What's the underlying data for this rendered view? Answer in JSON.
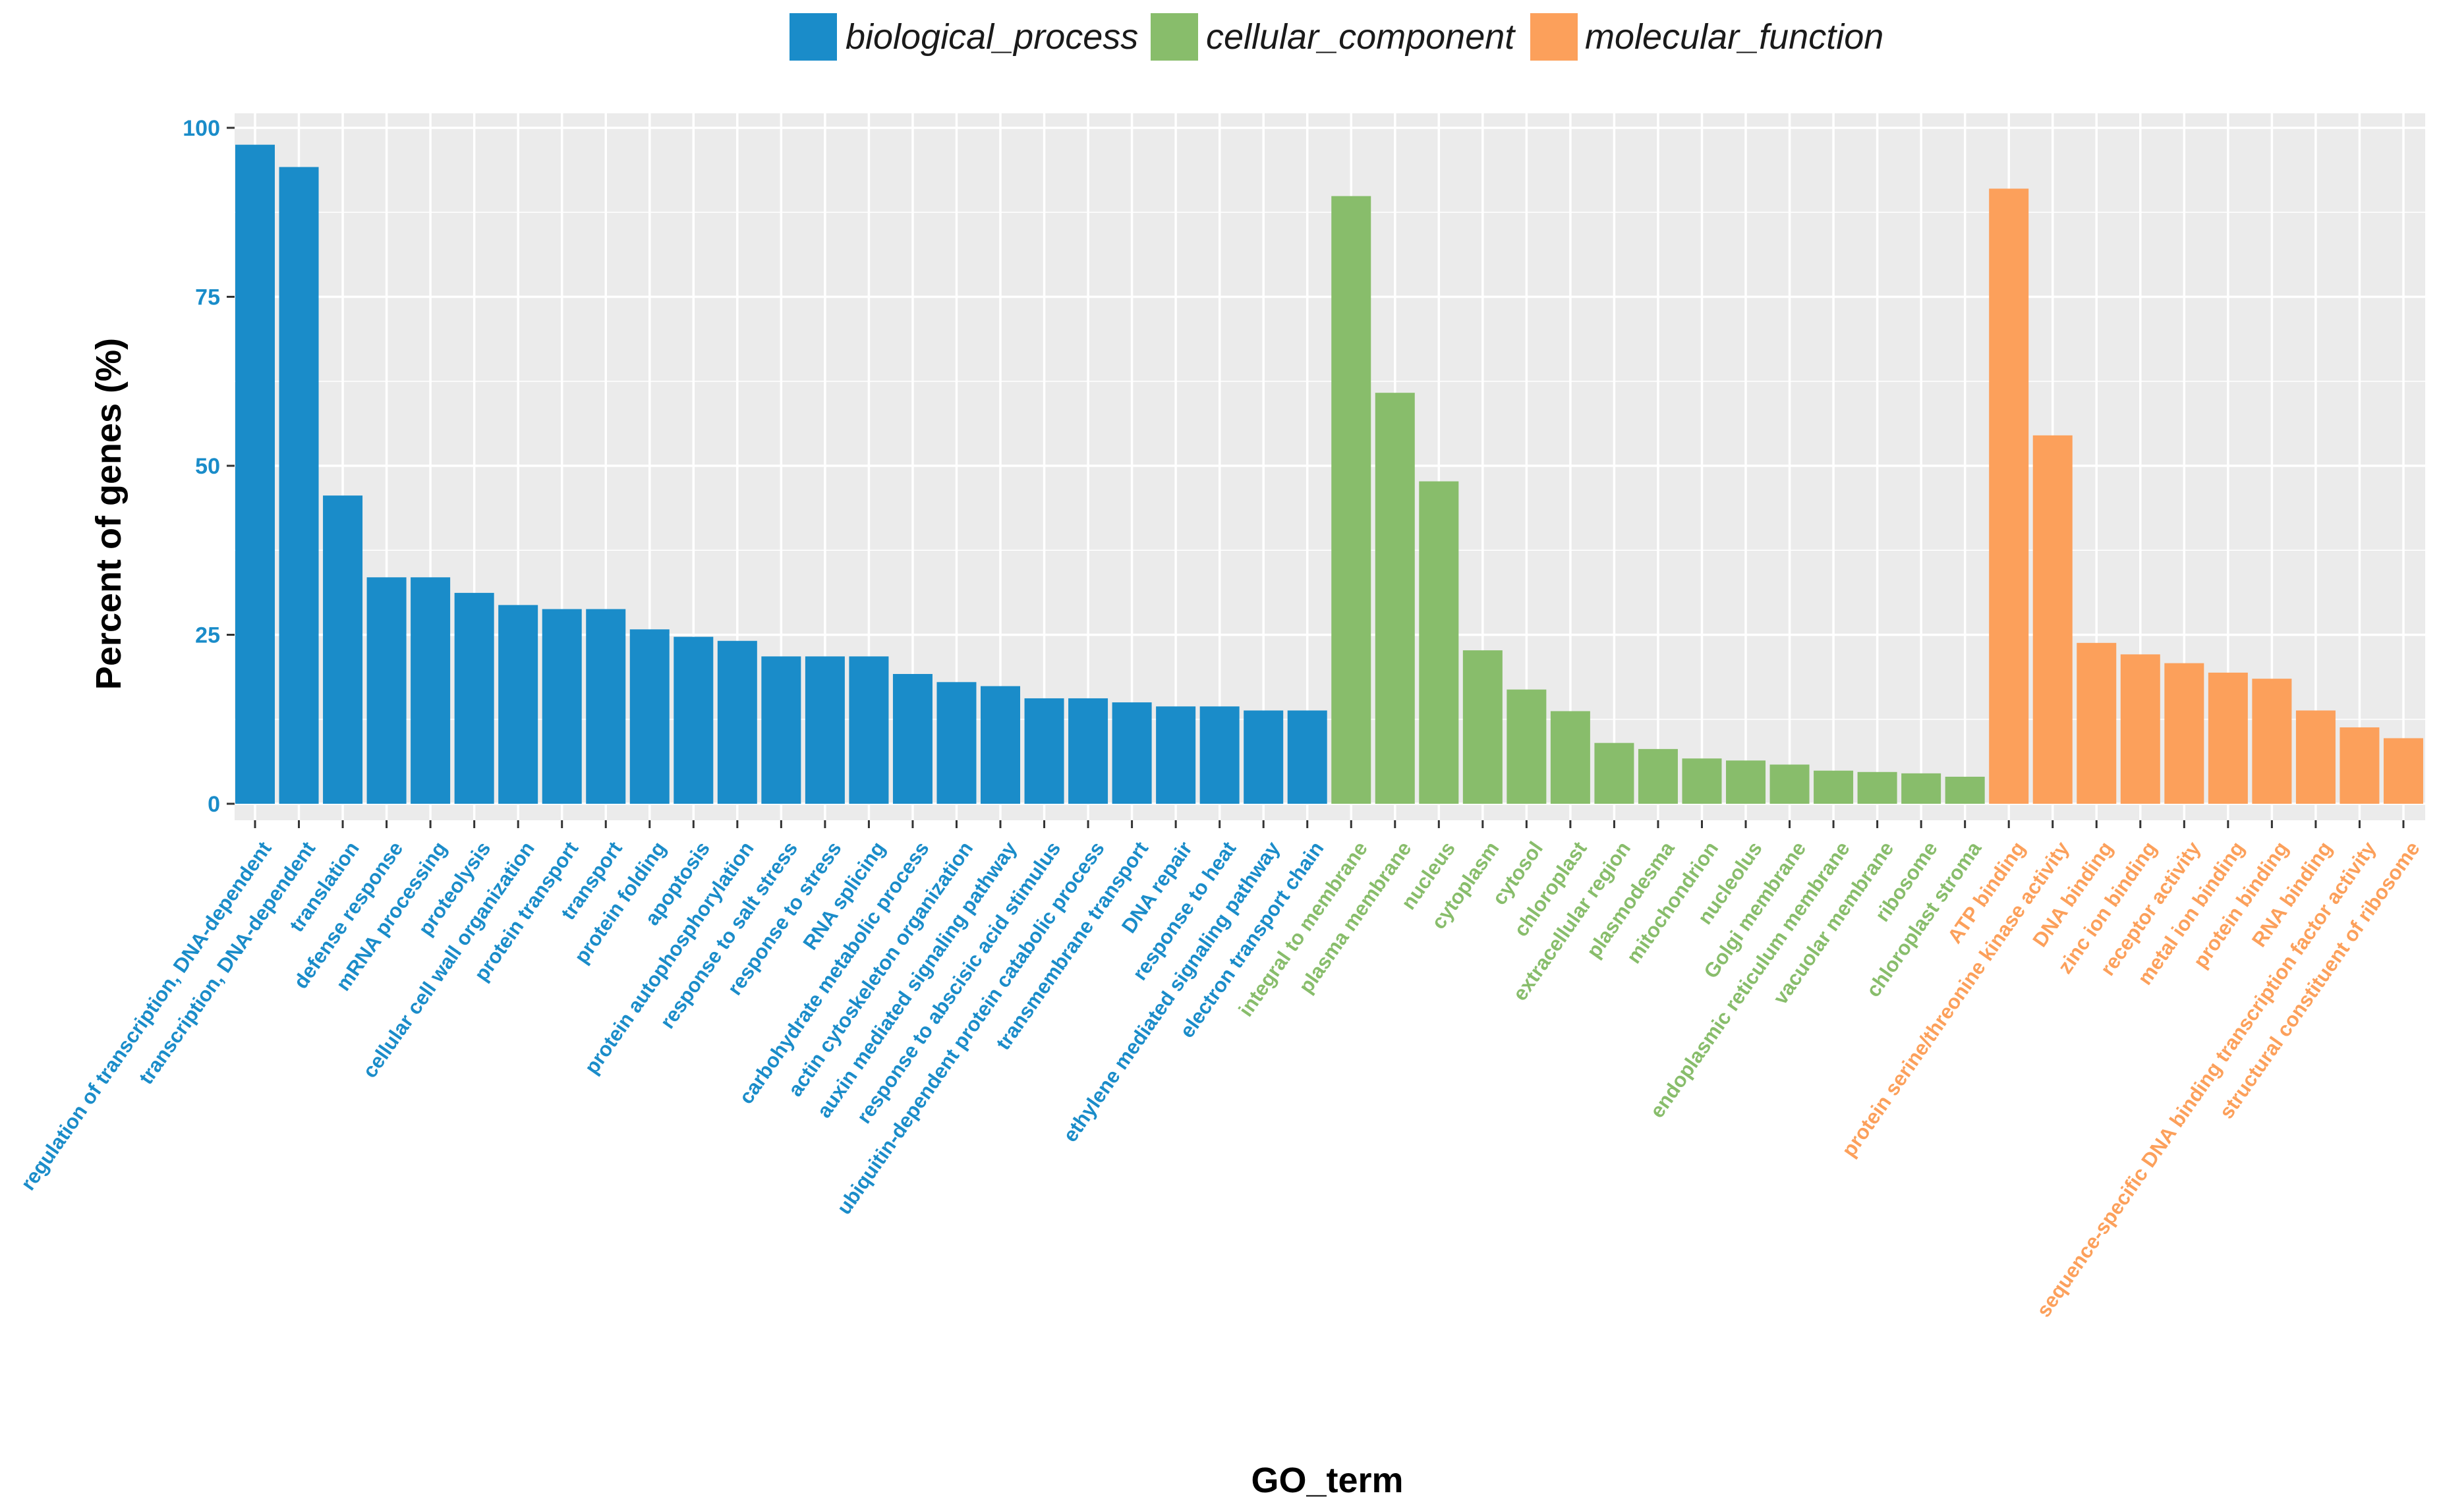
{
  "chart_data": {
    "type": "bar",
    "xlabel": "GO_term",
    "ylabel": "Percent of genes (%)",
    "ylim": [
      0,
      100
    ],
    "yticks": [
      0,
      25,
      50,
      75,
      100
    ],
    "grid": true,
    "legend_position": "top-center",
    "legend": [
      {
        "name": "biological_process",
        "color": "#1a8cc9"
      },
      {
        "name": "cellular_component",
        "color": "#88bd6b"
      },
      {
        "name": "molecular_function",
        "color": "#fca05b"
      }
    ],
    "series": [
      {
        "name": "biological_process",
        "color": "#1a8cc9",
        "categories": [
          "regulation of transcription, DNA-dependent",
          "transcription, DNA-dependent",
          "translation",
          "defense response",
          "mRNA processing",
          "proteolysis",
          "cellular cell wall organization",
          "protein transport",
          "transport",
          "protein folding",
          "apoptosis",
          "protein autophosphorylation",
          "response to salt stress",
          "response to stress",
          "RNA splicing",
          "carbohydrate metabolic process",
          "actin cytoskeleton organization",
          "auxin mediated signaling pathway",
          "response to abscisic acid stimulus",
          "ubiquitin-dependent protein catabolic process",
          "transmembrane transport",
          "DNA repair",
          "response to heat",
          "ethylene mediated signaling pathway",
          "electron transport chain"
        ],
        "values": [
          97.5,
          94.2,
          45.6,
          33.5,
          33.5,
          31.2,
          29.4,
          28.8,
          28.8,
          25.8,
          24.7,
          24.1,
          21.8,
          21.8,
          21.8,
          19.2,
          18.0,
          17.4,
          15.6,
          15.6,
          15.0,
          14.4,
          14.4,
          13.8,
          13.8
        ]
      },
      {
        "name": "cellular_component",
        "color": "#88bd6b",
        "categories": [
          "integral to membrane",
          "plasma membrane",
          "nucleus",
          "cytoplasm",
          "cytosol",
          "chloroplast",
          "extracellular region",
          "plasmodesma",
          "mitochondrion",
          "nucleolus",
          "Golgi membrane",
          "endoplasmic reticulum membrane",
          "vacuolar membrane",
          "ribosome",
          "chloroplast stroma"
        ],
        "values": [
          89.9,
          60.8,
          47.7,
          22.7,
          16.9,
          13.7,
          9.0,
          8.1,
          6.7,
          6.4,
          5.8,
          4.9,
          4.7,
          4.5,
          4.0
        ]
      },
      {
        "name": "molecular_function",
        "color": "#fca05b",
        "categories": [
          "ATP binding",
          "protein serine/threonine kinase activity",
          "DNA binding",
          "zinc ion binding",
          "receptor activity",
          "metal ion binding",
          "protein binding",
          "RNA binding",
          "sequence-specific DNA binding transcription factor activity",
          "structural constituent of ribosome"
        ],
        "values": [
          91.0,
          54.5,
          23.8,
          22.1,
          20.8,
          19.4,
          18.5,
          13.8,
          11.3,
          9.7
        ]
      }
    ]
  }
}
